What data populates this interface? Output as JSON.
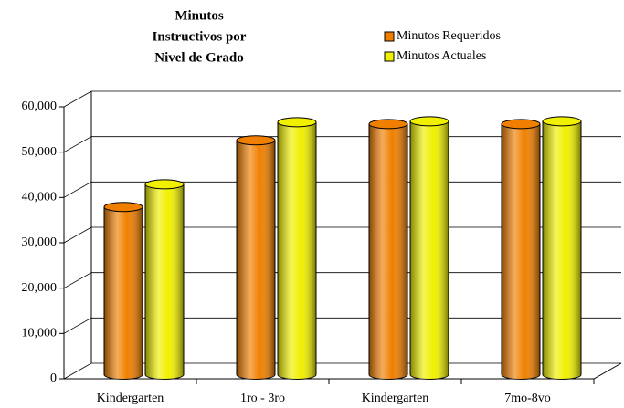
{
  "chart_data": {
    "type": "bar3d",
    "title_lines": [
      "Minutos",
      "Instructivos por",
      "Nivel de Grado"
    ],
    "categories": [
      "Kindergarten",
      "1ro - 3ro",
      "Kindergarten",
      "7mo-8vo"
    ],
    "series": [
      {
        "name": "Minutos Requeridos",
        "color": "#f07f00",
        "values": [
          36200,
          50900,
          54500,
          54500
        ]
      },
      {
        "name": "Minutos Actuales",
        "color": "#f0f000",
        "values": [
          41200,
          54900,
          55100,
          55100
        ]
      }
    ],
    "ylim": [
      0,
      60000
    ],
    "yticks": [
      {
        "value": 0,
        "label": "0"
      },
      {
        "value": 10000,
        "label": "10,000"
      },
      {
        "value": 20000,
        "label": "20,000"
      },
      {
        "value": 30000,
        "label": "30,000"
      },
      {
        "value": 40000,
        "label": "40,000"
      },
      {
        "value": 50000,
        "label": "50,000"
      },
      {
        "value": 60000,
        "label": "60,000"
      }
    ],
    "grid": true
  }
}
